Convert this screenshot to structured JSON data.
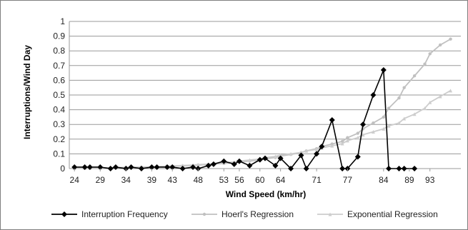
{
  "colors": {
    "background": "#ffffff",
    "grid": "#9a9a9a",
    "frame": "#7f7f7f",
    "interruption": "#000000",
    "hoerl": "#c0c0c0",
    "exponential": "#cdcdcd"
  },
  "chart_data": {
    "type": "line",
    "title": "",
    "xlabel": "Wind Speed (km/hr)",
    "ylabel": "Interruptions/Wind Day",
    "xlim": [
      23,
      99
    ],
    "ylim": [
      0,
      1
    ],
    "yticks": [
      "0",
      "0.1",
      "0.2",
      "0.3",
      "0.4",
      "0.5",
      "0.6",
      "0.7",
      "0.8",
      "0.9",
      "1"
    ],
    "xticks": [
      "24",
      "29",
      "34",
      "39",
      "43",
      "48",
      "53",
      "56",
      "60",
      "64",
      "71",
      "77",
      "84",
      "89",
      "93"
    ],
    "xtick_values": [
      24,
      29,
      34,
      39,
      43,
      48,
      53,
      56,
      60,
      64,
      71,
      77,
      84,
      89,
      93
    ],
    "grid": "horizontal",
    "legend_position": "bottom",
    "series": [
      {
        "name": "Interruption Frequency",
        "color": "#000000",
        "marker": "diamond",
        "x": [
          24,
          26,
          27,
          29,
          31,
          32,
          34,
          35,
          37,
          39,
          40,
          42,
          43,
          45,
          47,
          48,
          50,
          51,
          53,
          55,
          56,
          58,
          60,
          61,
          63,
          64,
          66,
          68,
          69,
          71,
          72,
          74,
          76,
          77,
          79,
          80,
          82,
          84,
          85,
          87,
          88,
          90
        ],
        "values": [
          0.01,
          0.01,
          0.01,
          0.01,
          0.0,
          0.01,
          0.0,
          0.01,
          0.0,
          0.01,
          0.01,
          0.01,
          0.01,
          0.0,
          0.01,
          0.0,
          0.02,
          0.03,
          0.05,
          0.03,
          0.05,
          0.02,
          0.06,
          0.07,
          0.02,
          0.07,
          0.0,
          0.09,
          0.0,
          0.1,
          0.15,
          0.33,
          0.0,
          0.0,
          0.08,
          0.3,
          0.5,
          0.67,
          0.0,
          0.0,
          0.0,
          0.0
        ]
      },
      {
        "name": "Hoerl's Regression",
        "color": "#c0c0c0",
        "marker": "circle",
        "x": [
          24,
          26,
          27,
          29,
          31,
          32,
          34,
          35,
          37,
          39,
          40,
          42,
          43,
          45,
          47,
          48,
          50,
          51,
          53,
          55,
          56,
          58,
          60,
          61,
          63,
          64,
          66,
          68,
          69,
          71,
          72,
          74,
          76,
          77,
          79,
          80,
          82,
          84,
          85,
          87,
          88,
          90,
          92,
          93,
          95,
          97
        ],
        "values": [
          0.002,
          0.003,
          0.003,
          0.004,
          0.005,
          0.006,
          0.007,
          0.008,
          0.009,
          0.011,
          0.012,
          0.014,
          0.016,
          0.018,
          0.021,
          0.024,
          0.027,
          0.031,
          0.035,
          0.04,
          0.045,
          0.051,
          0.058,
          0.066,
          0.075,
          0.085,
          0.096,
          0.108,
          0.12,
          0.135,
          0.15,
          0.167,
          0.185,
          0.21,
          0.24,
          0.27,
          0.31,
          0.35,
          0.41,
          0.48,
          0.55,
          0.63,
          0.71,
          0.78,
          0.84,
          0.88
        ]
      },
      {
        "name": "Exponential Regression",
        "color": "#cdcdcd",
        "marker": "triangle",
        "x": [
          24,
          26,
          27,
          29,
          31,
          32,
          34,
          35,
          37,
          39,
          40,
          42,
          43,
          45,
          47,
          48,
          50,
          51,
          53,
          55,
          56,
          58,
          60,
          61,
          63,
          64,
          66,
          68,
          69,
          71,
          72,
          74,
          76,
          77,
          79,
          80,
          82,
          84,
          85,
          87,
          88,
          90,
          92,
          93,
          95,
          97
        ],
        "values": [
          0.003,
          0.004,
          0.004,
          0.005,
          0.006,
          0.007,
          0.008,
          0.009,
          0.011,
          0.012,
          0.014,
          0.016,
          0.018,
          0.021,
          0.024,
          0.027,
          0.031,
          0.035,
          0.04,
          0.045,
          0.051,
          0.058,
          0.065,
          0.074,
          0.083,
          0.092,
          0.1,
          0.11,
          0.12,
          0.13,
          0.14,
          0.155,
          0.17,
          0.19,
          0.21,
          0.23,
          0.25,
          0.27,
          0.29,
          0.31,
          0.34,
          0.37,
          0.41,
          0.45,
          0.49,
          0.53
        ]
      }
    ]
  }
}
